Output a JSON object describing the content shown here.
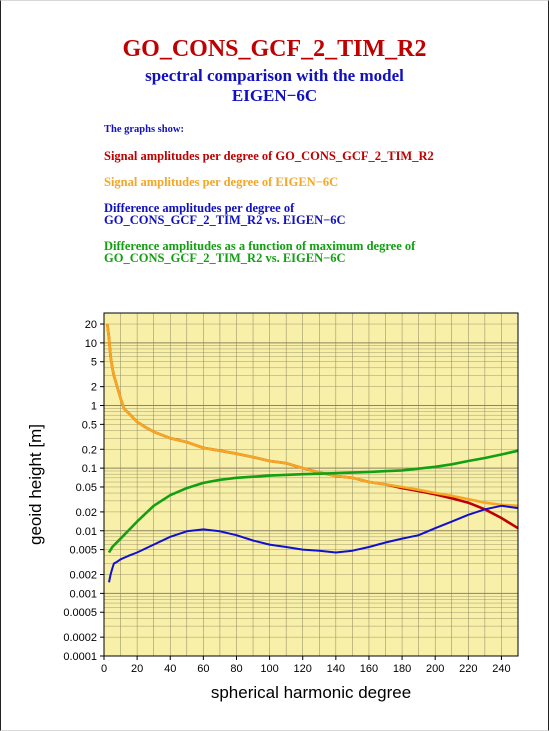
{
  "header": {
    "title": "GO_CONS_GCF_2_TIM_R2",
    "subtitle_line1": "spectral comparison with the model",
    "subtitle_line2": "EIGEN−6C"
  },
  "legend": {
    "intro": "The graphs show:",
    "item1": "Signal amplitudes per degree of GO_CONS_GCF_2_TIM_R2",
    "item2": "Signal amplitudes per degree of EIGEN−6C",
    "item3_line1": "Difference amplitudes per degree of",
    "item3_line2": "GO_CONS_GCF_2_TIM_R2 vs. EIGEN−6C",
    "item4_line1": "Difference amplitudes as a function of maximum degree of",
    "item4_line2": "GO_CONS_GCF_2_TIM_R2 vs. EIGEN−6C"
  },
  "chart_data": {
    "type": "line",
    "xlabel": "spherical harmonic degree",
    "ylabel": "geoid height [m]",
    "xlim": [
      0,
      250
    ],
    "ylim": [
      0.0001,
      30
    ],
    "yscale": "log",
    "grid": true,
    "background_color": "#f8f0a8",
    "x_ticks": [
      "0",
      "20",
      "40",
      "60",
      "80",
      "100",
      "120",
      "140",
      "160",
      "180",
      "200",
      "220",
      "240"
    ],
    "y_ticks": [
      "0.0001",
      "0.0002",
      "0.0005",
      "0.001",
      "0.002",
      "0.005",
      "0.01",
      "0.02",
      "0.05",
      "0.1",
      "0.2",
      "0.5",
      "1",
      "2",
      "5",
      "10",
      "20"
    ],
    "series": [
      {
        "name": "Signal amplitudes per degree of GO_CONS_GCF_2_TIM_R2",
        "color": "#c00000",
        "x": [
          2,
          3,
          4,
          5,
          6,
          8,
          10,
          12,
          15,
          20,
          25,
          30,
          40,
          50,
          60,
          70,
          80,
          90,
          100,
          110,
          120,
          130,
          140,
          150,
          160,
          170,
          180,
          190,
          200,
          210,
          220,
          230,
          240,
          250
        ],
        "y": [
          20,
          12,
          6,
          4,
          3,
          2,
          1.3,
          0.9,
          0.75,
          0.55,
          0.45,
          0.38,
          0.3,
          0.26,
          0.21,
          0.19,
          0.17,
          0.15,
          0.13,
          0.12,
          0.1,
          0.085,
          0.075,
          0.07,
          0.06,
          0.055,
          0.048,
          0.043,
          0.038,
          0.033,
          0.028,
          0.022,
          0.016,
          0.011
        ]
      },
      {
        "name": "Signal amplitudes per degree of EIGEN−6C",
        "color": "#f5a623",
        "x": [
          2,
          3,
          4,
          5,
          6,
          8,
          10,
          12,
          15,
          20,
          25,
          30,
          40,
          50,
          60,
          70,
          80,
          90,
          100,
          110,
          120,
          130,
          140,
          150,
          160,
          170,
          180,
          190,
          200,
          210,
          220,
          230,
          240,
          250
        ],
        "y": [
          20,
          12,
          6,
          4,
          3,
          2,
          1.3,
          0.9,
          0.75,
          0.55,
          0.45,
          0.38,
          0.3,
          0.26,
          0.21,
          0.19,
          0.17,
          0.15,
          0.13,
          0.12,
          0.1,
          0.085,
          0.075,
          0.07,
          0.06,
          0.055,
          0.05,
          0.045,
          0.04,
          0.036,
          0.032,
          0.028,
          0.026,
          0.025
        ]
      },
      {
        "name": "Difference amplitudes per degree of GO_CONS_GCF_2_TIM_R2 vs. EIGEN−6C",
        "color": "#1010d0",
        "x": [
          3,
          4,
          5,
          6,
          8,
          10,
          15,
          20,
          30,
          40,
          50,
          60,
          70,
          80,
          90,
          100,
          110,
          120,
          130,
          140,
          150,
          160,
          170,
          180,
          190,
          200,
          210,
          220,
          230,
          240,
          250
        ],
        "y": [
          0.0015,
          0.002,
          0.0025,
          0.003,
          0.0032,
          0.0035,
          0.004,
          0.0045,
          0.006,
          0.008,
          0.0098,
          0.0105,
          0.0098,
          0.0085,
          0.007,
          0.006,
          0.0055,
          0.005,
          0.0048,
          0.0045,
          0.0048,
          0.0055,
          0.0065,
          0.0075,
          0.0085,
          0.011,
          0.014,
          0.018,
          0.022,
          0.025,
          0.023
        ]
      },
      {
        "name": "Difference amplitudes as a function of maximum degree of GO_CONS_GCF_2_TIM_R2 vs. EIGEN−6C",
        "color": "#12a012",
        "x": [
          3,
          5,
          10,
          20,
          30,
          40,
          50,
          60,
          70,
          80,
          100,
          120,
          140,
          160,
          180,
          200,
          210,
          220,
          230,
          240,
          250
        ],
        "y": [
          0.0045,
          0.0055,
          0.0075,
          0.014,
          0.025,
          0.037,
          0.048,
          0.058,
          0.065,
          0.07,
          0.076,
          0.08,
          0.083,
          0.087,
          0.092,
          0.105,
          0.115,
          0.13,
          0.145,
          0.165,
          0.19
        ]
      }
    ]
  }
}
